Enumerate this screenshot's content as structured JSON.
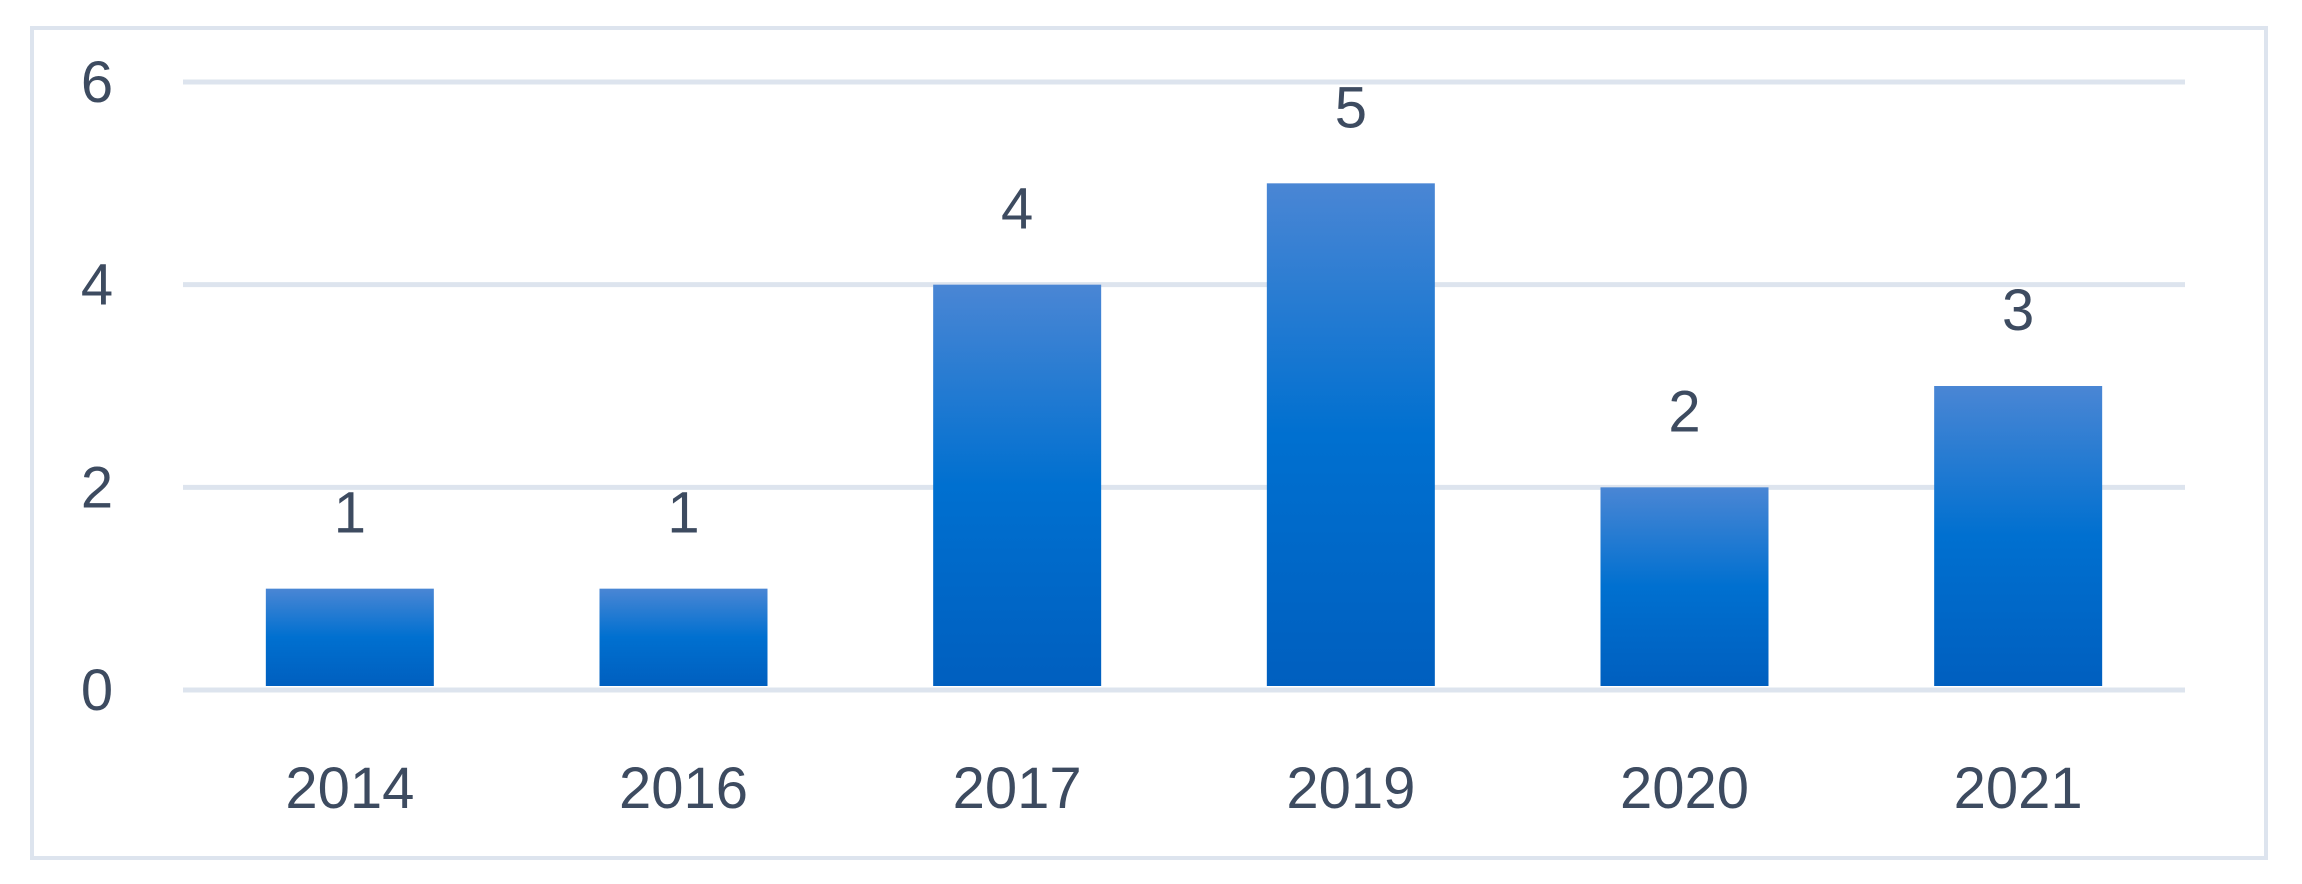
{
  "chart_data": {
    "type": "bar",
    "title": "",
    "xlabel": "",
    "ylabel": "",
    "categories": [
      "2014",
      "2016",
      "2017",
      "2019",
      "2020",
      "2021"
    ],
    "values": [
      1,
      1,
      4,
      5,
      2,
      3
    ],
    "data_labels": [
      "1",
      "1",
      "4",
      "5",
      "2",
      "3"
    ],
    "ylim": [
      0,
      6
    ],
    "yticks": [
      0,
      2,
      4,
      6
    ],
    "ytick_labels": [
      "0",
      "2",
      "4",
      "6"
    ],
    "grid": true,
    "legend": "none",
    "colors": {
      "bar_top": "#4a86d4",
      "bar_mid": "#0070d0",
      "bar_bottom": "#005fbf",
      "grid": "#dde4ee",
      "text": "#3d4b60"
    }
  }
}
